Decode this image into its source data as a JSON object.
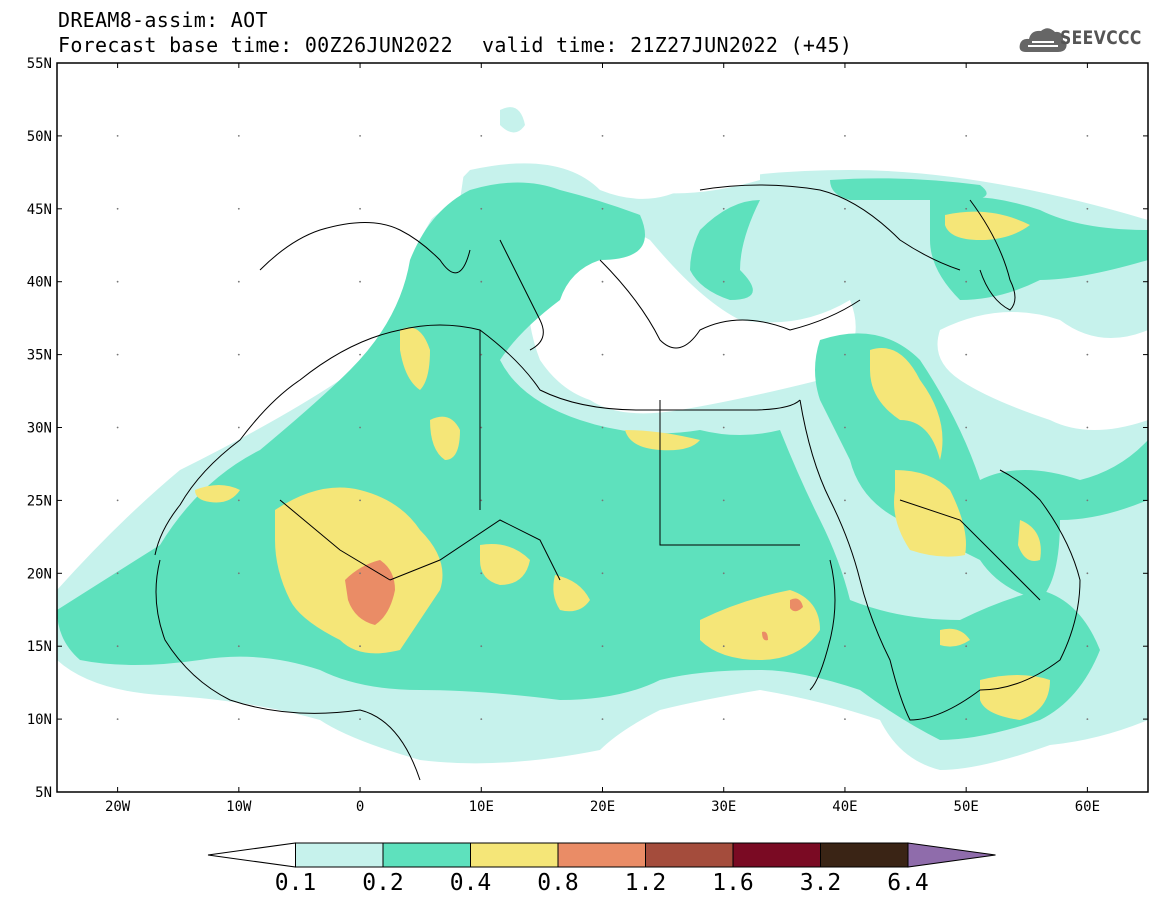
{
  "header": {
    "product": "DREAM8-assim: AOT",
    "base_time": "Forecast base time: 00Z26JUN2022",
    "valid_time": "valid time: 21Z27JUN2022 (+45)",
    "logo_text": "SEEVCCC",
    "logo_icon": "cloud-icon"
  },
  "axes": {
    "lat_labels": [
      "55N",
      "50N",
      "45N",
      "40N",
      "35N",
      "30N",
      "25N",
      "20N",
      "15N",
      "10N",
      "5N"
    ],
    "lon_labels": [
      "20W",
      "10W",
      "0",
      "10E",
      "20E",
      "30E",
      "40E",
      "50E",
      "60E"
    ],
    "lat_range": [
      5,
      55
    ],
    "lon_range": [
      -25,
      65
    ]
  },
  "colorbar": {
    "labels": [
      "0.1",
      "0.2",
      "0.4",
      "0.8",
      "1.2",
      "1.6",
      "3.2",
      "6.4"
    ],
    "colors": [
      "#ffffff",
      "#c6f2ec",
      "#5ee1bd",
      "#f5e678",
      "#ea8c66",
      "#a44c3c",
      "#7a0a23",
      "#3a2415",
      "#8f6cab"
    ]
  }
}
